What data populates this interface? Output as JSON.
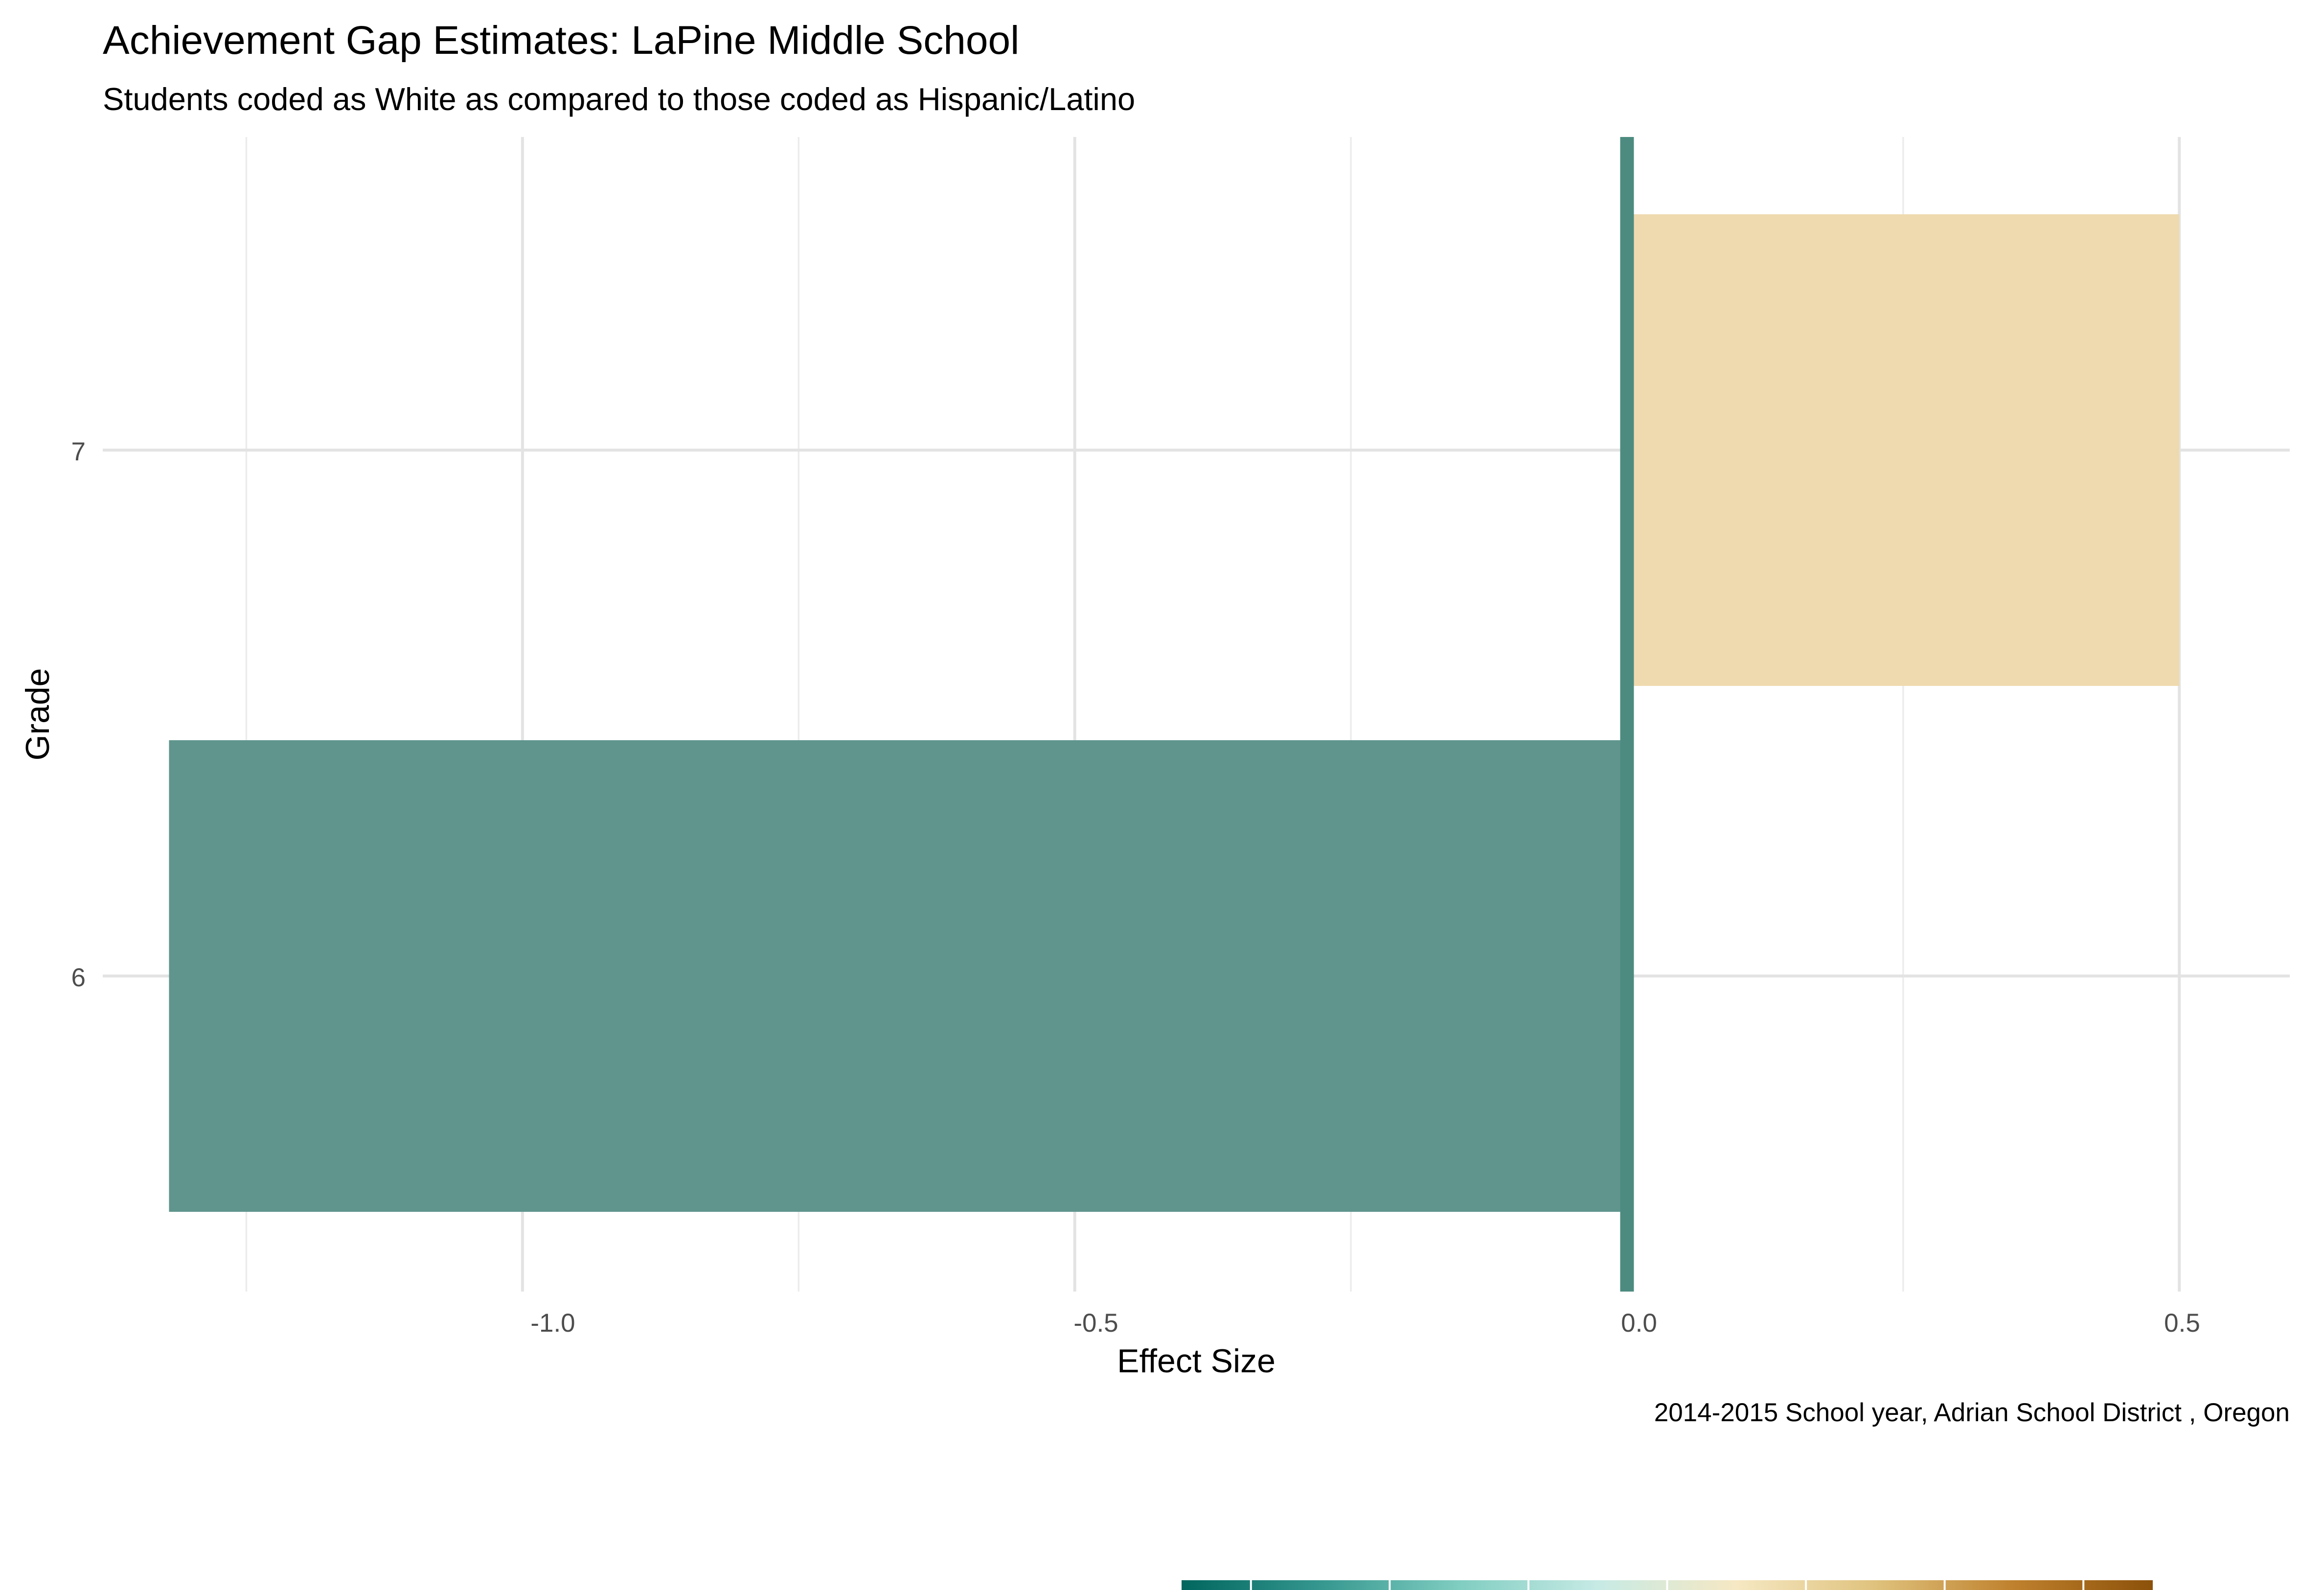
{
  "chart_data": {
    "type": "bar",
    "orientation": "horizontal",
    "title": "Achievement Gap Estimates: LaPine Middle School",
    "subtitle": "Students coded as White as compared to those coded as Hispanic/Latino",
    "xlabel": "Effect Size",
    "ylabel": "Grade",
    "caption": "2014-2015 School year,  Adrian School District , Oregon",
    "categories": [
      "6",
      "7"
    ],
    "values": [
      -1.32,
      0.5
    ],
    "x_ticks": [
      -1.0,
      -0.5,
      0.0,
      0.5
    ],
    "x_tick_labels": [
      "-1.0",
      "-0.5",
      "0.0",
      "0.5"
    ],
    "xlim": [
      -1.38,
      0.6
    ],
    "reference_line": 0,
    "grid": true,
    "colors": {
      "negative": "#5f958d",
      "positive": "#efdaaf",
      "reference_line": "#4d8b80"
    },
    "colorbar": {
      "stops": [
        "#01665e",
        "#35978f",
        "#80cdc1",
        "#c7eae5",
        "#f6e8c3",
        "#dfc27d",
        "#bf812d",
        "#8c510a"
      ],
      "tick_count": 7
    }
  }
}
